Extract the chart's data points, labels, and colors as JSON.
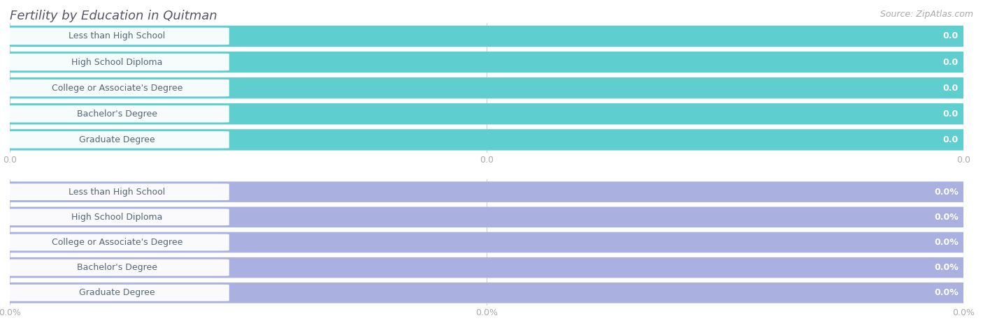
{
  "title": "Fertility by Education in Quitman",
  "source": "Source: ZipAtlas.com",
  "categories": [
    "Less than High School",
    "High School Diploma",
    "College or Associate's Degree",
    "Bachelor's Degree",
    "Graduate Degree"
  ],
  "values_top": [
    0.0,
    0.0,
    0.0,
    0.0,
    0.0
  ],
  "values_bottom": [
    0.0,
    0.0,
    0.0,
    0.0,
    0.0
  ],
  "bar_color_top": "#5ecece",
  "bar_color_bottom": "#aab0e0",
  "row_bg_even": "#ececf0",
  "row_bg_odd": "#f4f4f7",
  "background_color": "#ffffff",
  "title_color": "#555566",
  "title_fontsize": 13,
  "source_color": "#aaaaaa",
  "source_fontsize": 9,
  "label_fontsize": 9,
  "value_fontsize": 9,
  "tick_fontsize": 9,
  "tick_color": "#aaaaaa",
  "grid_color": "#cccccc",
  "text_color": "#556677",
  "value_color_top": "#3a8888",
  "value_color_bottom": "#7778aa"
}
